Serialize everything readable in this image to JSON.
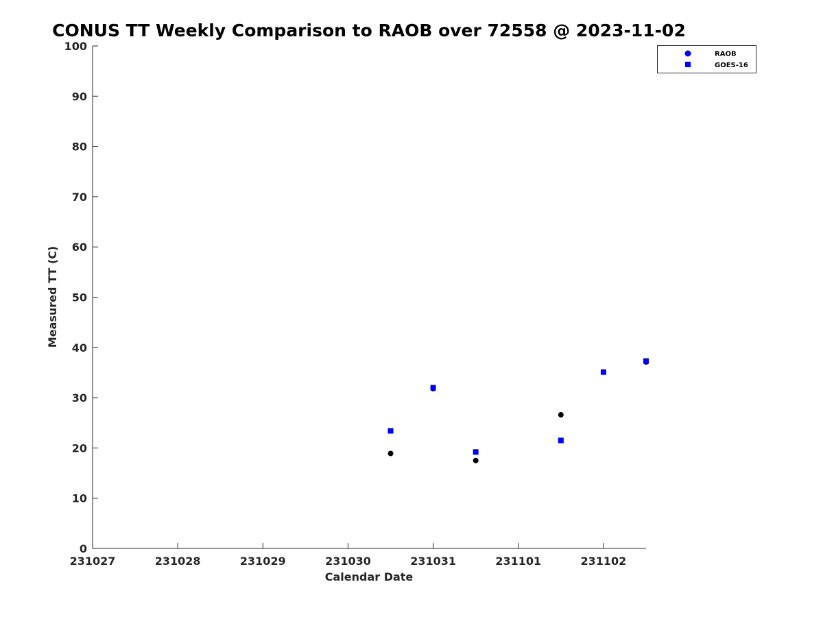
{
  "chart_data": {
    "type": "scatter",
    "title": "CONUS TT Weekly Comparison to RAOB over 72558 @ 2023-11-02",
    "xlabel": "Calendar Date",
    "ylabel": "Measured TT (C)",
    "xlim": [
      "2023-10-27",
      "2023-11-02 12:00"
    ],
    "ylim": [
      0,
      100
    ],
    "x_ticks": [
      "231027",
      "231028",
      "231029",
      "231030",
      "231031",
      "231101",
      "231102"
    ],
    "y_ticks": [
      "0",
      "10",
      "20",
      "30",
      "40",
      "50",
      "60",
      "70",
      "80",
      "90",
      "100"
    ],
    "grid": false,
    "legend_position": "top-right",
    "series": [
      {
        "name": "RAOB",
        "marker": "circle",
        "color": "#000000",
        "legend_color": "#0000ff",
        "points": [
          {
            "x": "2023-10-30 12:00",
            "y": 18.9
          },
          {
            "x": "2023-10-31 00:00",
            "y": 31.8
          },
          {
            "x": "2023-10-31 12:00",
            "y": 17.5
          },
          {
            "x": "2023-11-01 12:00",
            "y": 26.6
          },
          {
            "x": "2023-11-02 00:00",
            "y": 35.1
          },
          {
            "x": "2023-11-02 12:00",
            "y": 37.1
          }
        ]
      },
      {
        "name": "GOES-16",
        "marker": "square",
        "color": "#0000ff",
        "legend_color": "#0000ff",
        "points": [
          {
            "x": "2023-10-30 12:00",
            "y": 23.4
          },
          {
            "x": "2023-10-31 00:00",
            "y": 32.0
          },
          {
            "x": "2023-10-31 12:00",
            "y": 19.2
          },
          {
            "x": "2023-11-01 12:00",
            "y": 21.5
          },
          {
            "x": "2023-11-02 00:00",
            "y": 35.1
          },
          {
            "x": "2023-11-02 12:00",
            "y": 37.3
          }
        ]
      }
    ]
  }
}
